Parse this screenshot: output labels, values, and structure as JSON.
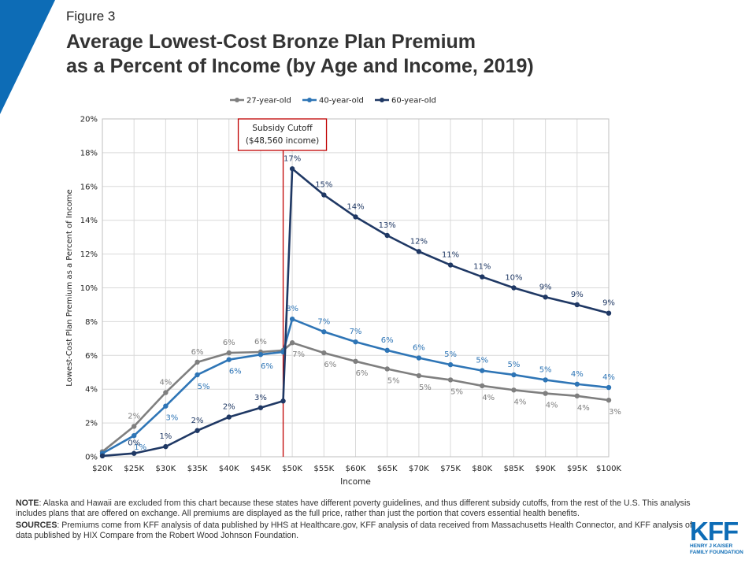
{
  "figure_label": "Figure 3",
  "chart_data": {
    "type": "line",
    "title_lines": [
      "Average Lowest-Cost Bronze Plan Premium",
      "as a Percent of Income (by Age and Income, 2019)"
    ],
    "x_label": "Income",
    "y_label": "Lowest-Cost Plan Premium as a Percent of Income",
    "x": [
      20000,
      25000,
      30000,
      35000,
      40000,
      45000,
      48560,
      50000,
      55000,
      60000,
      65000,
      70000,
      75000,
      80000,
      85000,
      90000,
      95000,
      100000
    ],
    "series": [
      {
        "name": "27-year-old",
        "color": "#7f7f7f",
        "values": [
          0.3,
          1.8,
          3.8,
          5.6,
          6.15,
          6.2,
          6.3,
          6.75,
          6.15,
          5.65,
          5.2,
          4.8,
          4.55,
          4.2,
          3.95,
          3.75,
          3.6,
          3.35
        ],
        "value_labels": [
          null,
          "2%",
          "4%",
          "6%",
          "6%",
          "6%",
          null,
          "7%",
          "6%",
          "6%",
          "5%",
          "5%",
          "5%",
          "4%",
          "4%",
          "4%",
          "4%",
          "3%"
        ]
      },
      {
        "name": "40-year-old",
        "color": "#2e75b6",
        "values": [
          0.2,
          1.25,
          3.0,
          4.85,
          5.75,
          6.05,
          6.2,
          8.15,
          7.4,
          6.8,
          6.3,
          5.85,
          5.45,
          5.1,
          4.85,
          4.55,
          4.3,
          4.1
        ],
        "value_labels": [
          null,
          "1%",
          "3%",
          "5%",
          "6%",
          "6%",
          null,
          "8%",
          "7%",
          "7%",
          "6%",
          "6%",
          "5%",
          "5%",
          "5%",
          "5%",
          "4%",
          "4%"
        ]
      },
      {
        "name": "60-year-old",
        "color": "#1f3864",
        "values": [
          0.05,
          0.2,
          0.6,
          1.55,
          2.35,
          2.9,
          3.3,
          17.05,
          15.5,
          14.2,
          13.1,
          12.15,
          11.35,
          10.65,
          10.0,
          9.45,
          9.0,
          8.5
        ],
        "value_labels": [
          null,
          "0%",
          "1%",
          "2%",
          "2%",
          "3%",
          null,
          "17%",
          "15%",
          "14%",
          "13%",
          "12%",
          "11%",
          "11%",
          "10%",
          "9%",
          "9%",
          "9%"
        ]
      }
    ],
    "xlim": [
      20000,
      100000
    ],
    "xticks": [
      {
        "value": 20000,
        "label": "$20K"
      },
      {
        "value": 25000,
        "label": "$25K"
      },
      {
        "value": 30000,
        "label": "$30K"
      },
      {
        "value": 35000,
        "label": "$35K"
      },
      {
        "value": 40000,
        "label": "$40K"
      },
      {
        "value": 45000,
        "label": "$45K"
      },
      {
        "value": 50000,
        "label": "$50K"
      },
      {
        "value": 55000,
        "label": "$55K"
      },
      {
        "value": 60000,
        "label": "$60K"
      },
      {
        "value": 65000,
        "label": "$65K"
      },
      {
        "value": 70000,
        "label": "$70K"
      },
      {
        "value": 75000,
        "label": "$75K"
      },
      {
        "value": 80000,
        "label": "$80K"
      },
      {
        "value": 85000,
        "label": "$85K"
      },
      {
        "value": 90000,
        "label": "$90K"
      },
      {
        "value": 95000,
        "label": "$95K"
      },
      {
        "value": 100000,
        "label": "$100K"
      }
    ],
    "ylim": [
      0,
      20
    ],
    "yticks": [
      {
        "value": 0,
        "label": "0%"
      },
      {
        "value": 2,
        "label": "2%"
      },
      {
        "value": 4,
        "label": "4%"
      },
      {
        "value": 6,
        "label": "6%"
      },
      {
        "value": 8,
        "label": "8%"
      },
      {
        "value": 10,
        "label": "10%"
      },
      {
        "value": 12,
        "label": "12%"
      },
      {
        "value": 14,
        "label": "14%"
      },
      {
        "value": 16,
        "label": "16%"
      },
      {
        "value": 18,
        "label": "18%"
      },
      {
        "value": 20,
        "label": "20%"
      }
    ],
    "grid": true,
    "legend": "top",
    "cutoff": {
      "x": 48560,
      "color": "#c00000",
      "label_lines": [
        "Subsidy Cutoff",
        "($48,560 income)"
      ]
    }
  },
  "note": {
    "label": "NOTE",
    "text": ":  Alaska and Hawaii are excluded from this chart because these states have different poverty guidelines, and thus different subsidy cutoffs, from the rest of the U.S. This analysis includes plans that are offered on exchange. All premiums are displayed as the full price, rather than just the portion that covers essential health benefits."
  },
  "sources": {
    "label": "SOURCES",
    "text": ":  Premiums come from KFF analysis of data published by HHS at Healthcare.gov, KFF analysis of data received from Massachusetts Health Connector, and KFF analysis of data published by HIX Compare from the Robert Wood Johnson Foundation."
  },
  "logo": {
    "name": "KFF",
    "lines": [
      "HENRY J KAISER",
      "FAMILY FOUNDATION"
    ]
  }
}
